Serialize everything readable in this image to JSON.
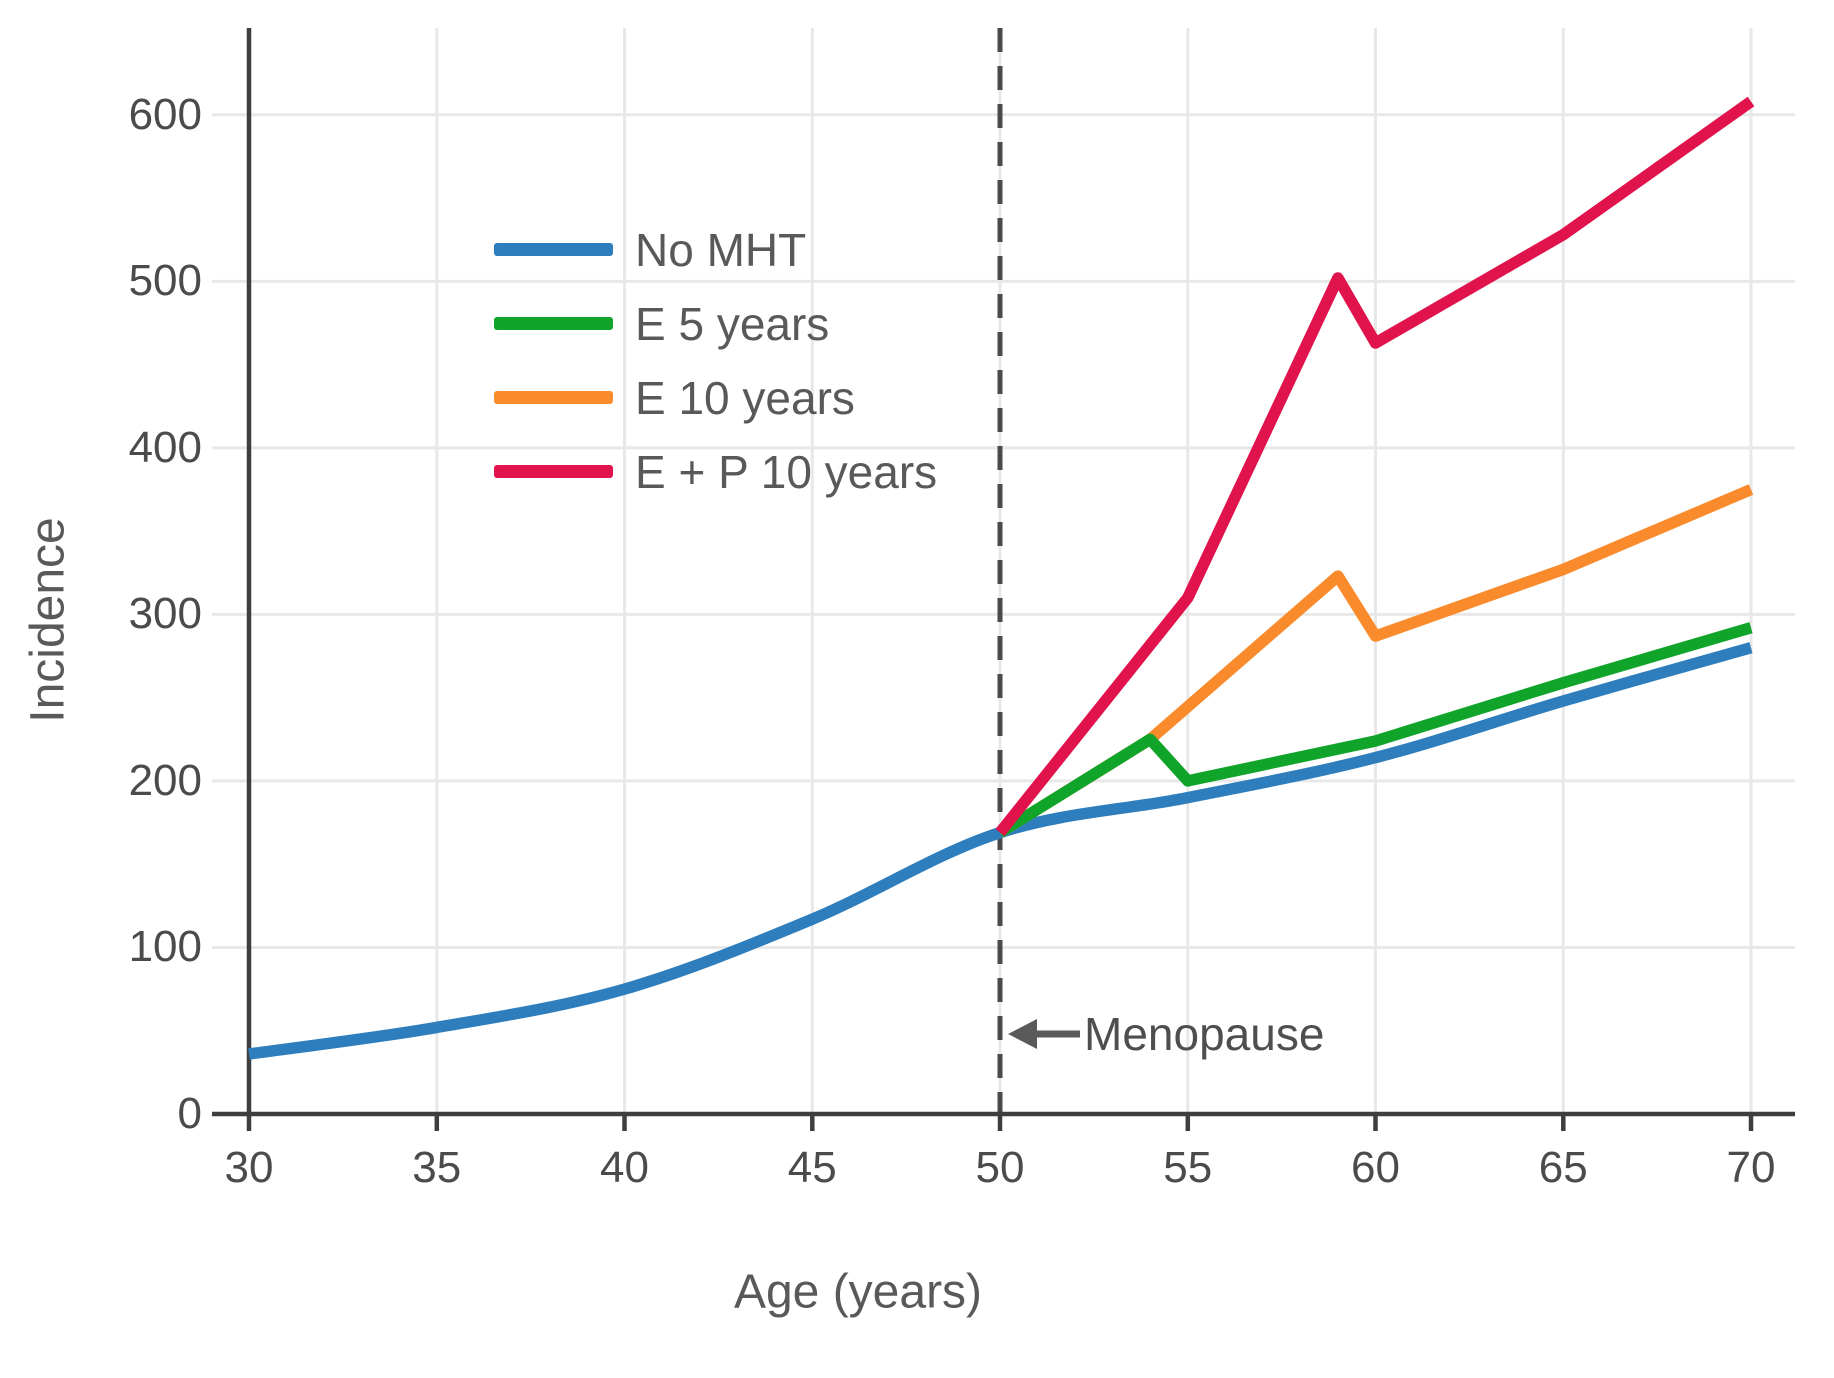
{
  "chart_data": {
    "type": "line",
    "title": "",
    "xlabel": "Age (years)",
    "ylabel": "Incidence",
    "xlim": [
      30,
      71.2
    ],
    "ylim": [
      0,
      651
    ],
    "xticks": [
      30,
      35,
      40,
      45,
      50,
      55,
      60,
      65,
      70
    ],
    "yticks": [
      0,
      100,
      200,
      300,
      400,
      500,
      600
    ],
    "grid": true,
    "legend_position": "upper-left-inside",
    "annotations": {
      "menopause": {
        "label": "Menopause",
        "x": 50,
        "arrow": "left"
      }
    },
    "series": [
      {
        "name": "No MHT",
        "color": "#2E7EBD",
        "smooth": true,
        "points": [
          [
            30,
            36
          ],
          [
            35,
            52
          ],
          [
            40,
            75
          ],
          [
            45,
            117
          ],
          [
            50,
            169
          ],
          [
            55,
            190
          ],
          [
            60,
            214
          ],
          [
            65,
            248
          ],
          [
            70,
            280
          ]
        ]
      },
      {
        "name": "E 10 years",
        "color": "#FA8B2C",
        "smooth": false,
        "points": [
          [
            50,
            169
          ],
          [
            54,
            225
          ],
          [
            59,
            323
          ],
          [
            60,
            287
          ],
          [
            65,
            327
          ],
          [
            70,
            375
          ]
        ]
      },
      {
        "name": "E 5 years",
        "color": "#11A42B",
        "smooth": false,
        "points": [
          [
            50,
            169
          ],
          [
            54,
            225
          ],
          [
            55,
            200
          ],
          [
            60,
            224
          ],
          [
            65,
            259
          ],
          [
            70,
            292
          ]
        ]
      },
      {
        "name": "E + P 10 years",
        "color": "#E0134D",
        "smooth": false,
        "points": [
          [
            50,
            169
          ],
          [
            55,
            310
          ],
          [
            59,
            502
          ],
          [
            60,
            463
          ],
          [
            65,
            528
          ],
          [
            70,
            608
          ]
        ]
      }
    ],
    "legend_order": [
      "No MHT",
      "E 5 years",
      "E 10 years",
      "E + P 10 years"
    ],
    "colors": {
      "axis": "#3d3e40",
      "grid": "#e8e8e8",
      "dashed_line": "#4a4a4a",
      "arrow": "#5a5a5a",
      "tick_text": "#4a4b4d",
      "label_text": "#58595b"
    }
  }
}
